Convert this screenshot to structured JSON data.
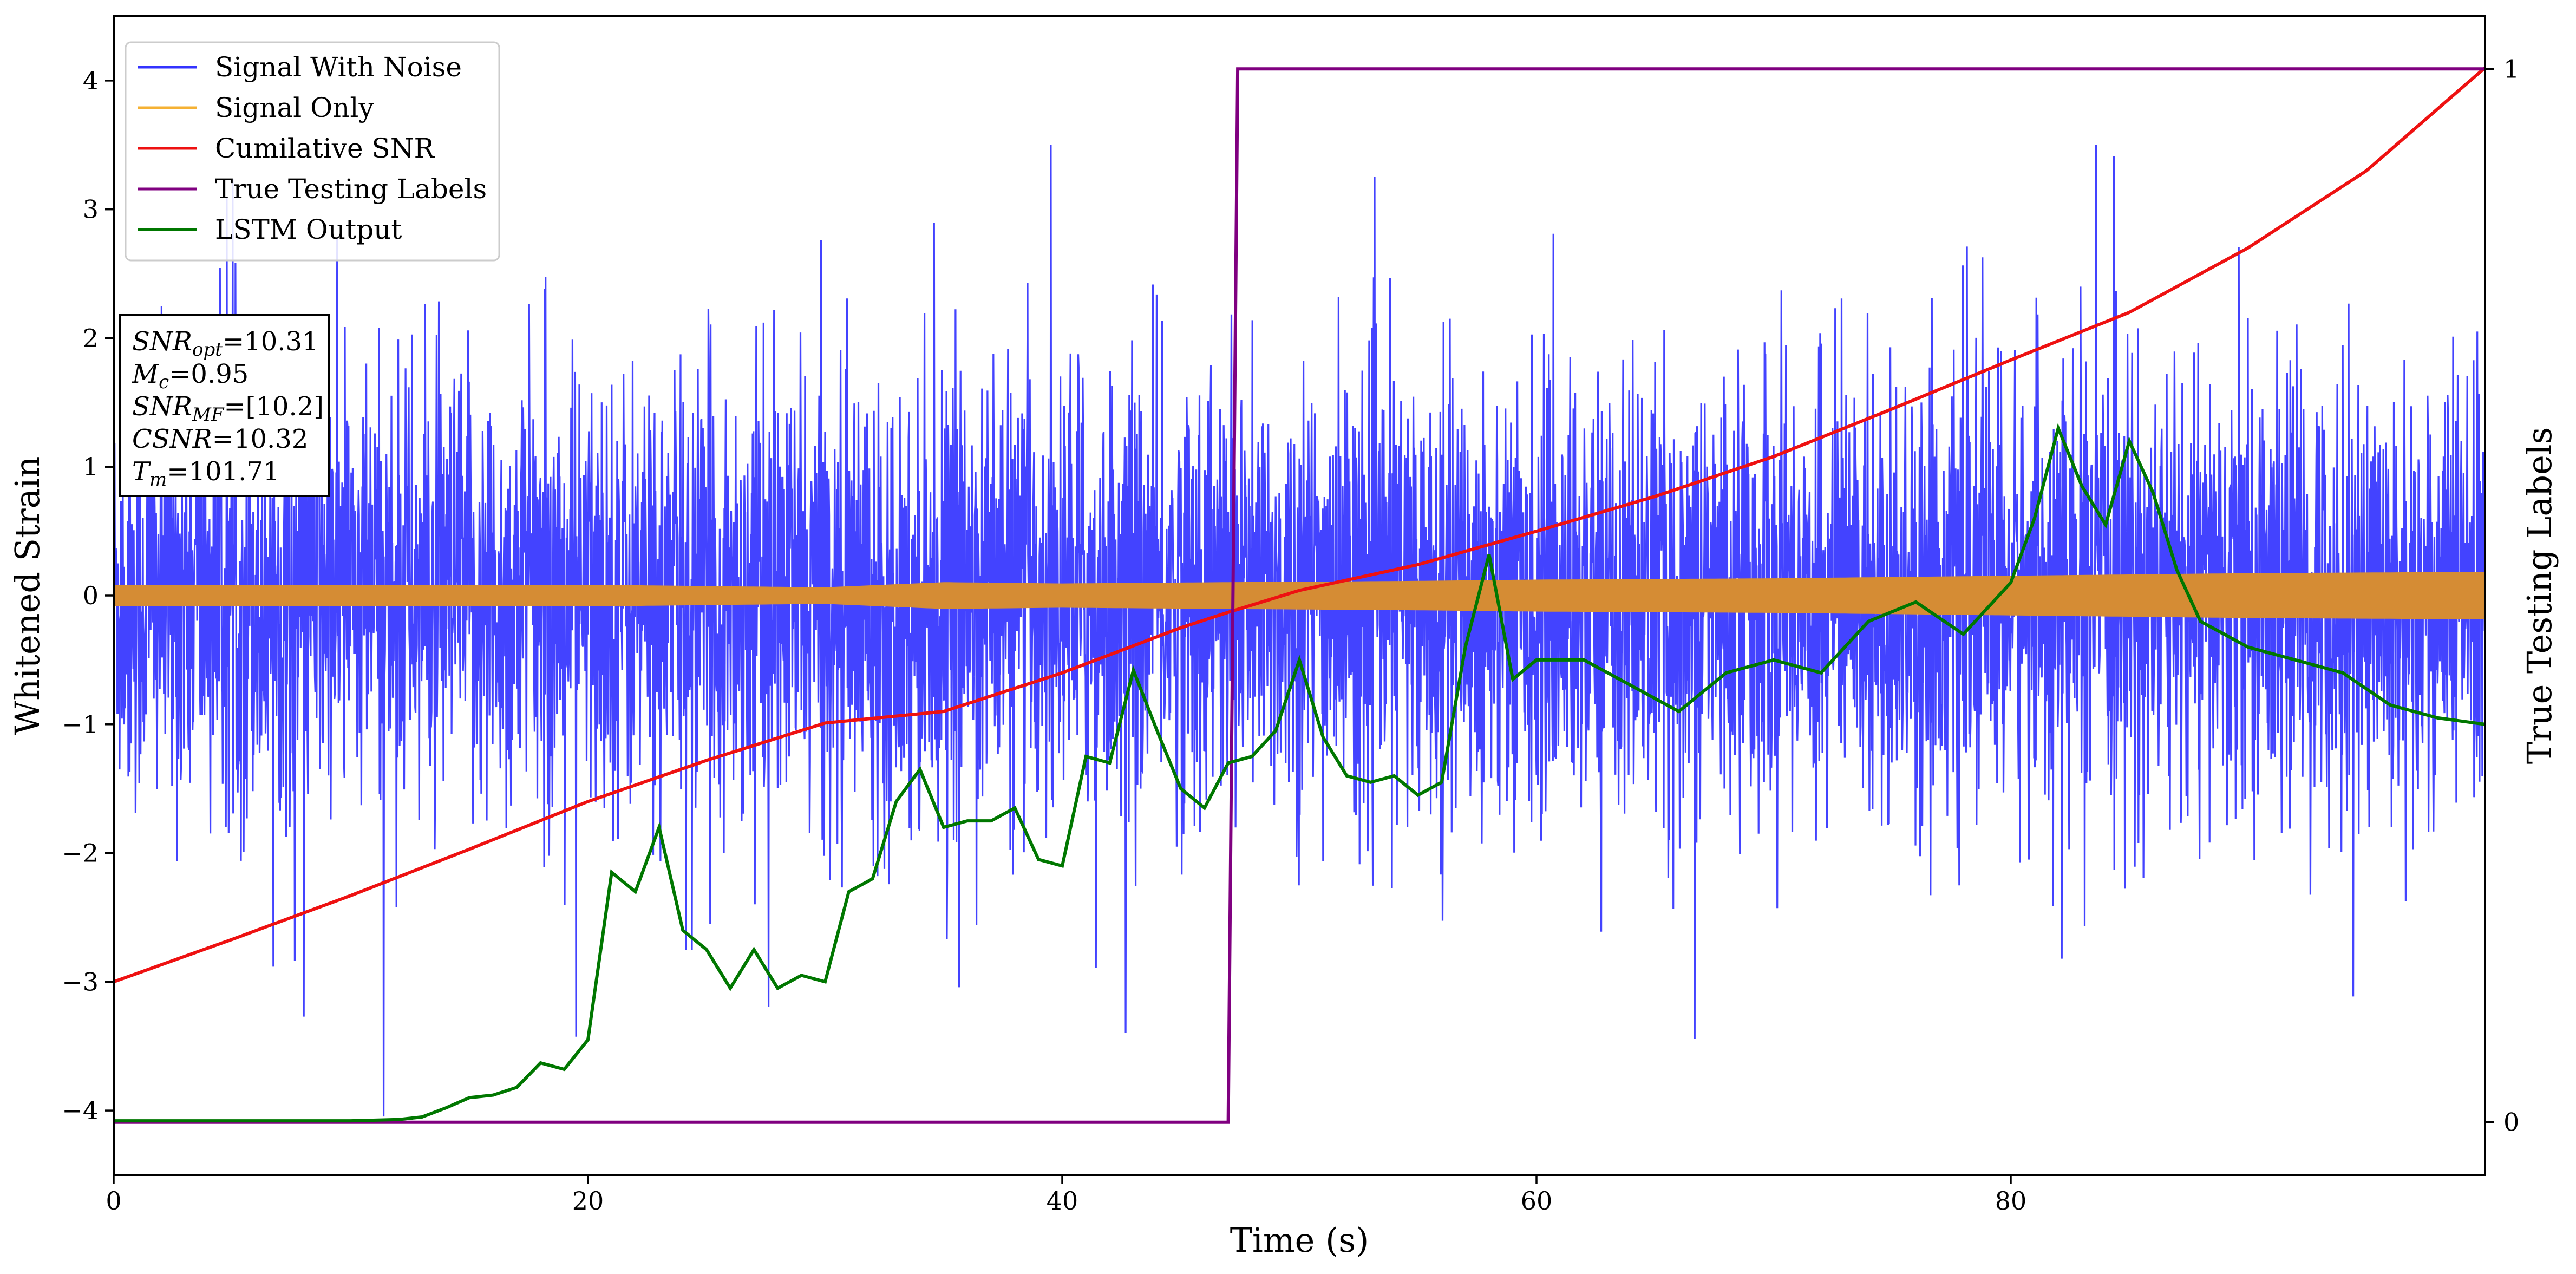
{
  "chart_data": {
    "type": "line",
    "xlabel": "Time (s)",
    "ylabel": "Whitened Strain",
    "ylabel_right": "True Testing Labels",
    "xlim": [
      0,
      100
    ],
    "ylim": [
      -4.5,
      4.5
    ],
    "ylim_right": [
      -0.05,
      1.05
    ],
    "x_ticks": [
      0,
      20,
      40,
      60,
      80
    ],
    "y_ticks": [
      -4,
      -3,
      -2,
      -1,
      0,
      1,
      2,
      3,
      4
    ],
    "y_ticks_right": [
      0,
      1
    ],
    "grid": false,
    "legend_position": "top-left",
    "legend": [
      {
        "label": "Signal With Noise",
        "color": "#3333ff"
      },
      {
        "label": "Signal Only",
        "color": "#f5b133"
      },
      {
        "label": "Cumilative SNR",
        "color": "#ee1111"
      },
      {
        "label": "True Testing Labels",
        "color": "#800080"
      },
      {
        "label": "LSTM Output",
        "color": "#007700"
      }
    ],
    "annotation": [
      {
        "label": "SNR",
        "sub": "opt",
        "value": "=10.31"
      },
      {
        "label": "M",
        "sub": "c",
        "value": "=0.95"
      },
      {
        "label": "SNR",
        "sub": "MF",
        "value": "=[10.2]"
      },
      {
        "label": "CSNR",
        "sub": "",
        "value": "=10.32"
      },
      {
        "label": "T",
        "sub": "m",
        "value": "=101.71"
      }
    ],
    "series": [
      {
        "name": "Signal With Noise",
        "color": "#3333ff",
        "kind": "noise",
        "noise_sigma": 0.85,
        "envelope_max": 3.5,
        "envelope_min": -4.1
      },
      {
        "name": "Signal Only",
        "color": "#d58c34",
        "kind": "band",
        "x": [
          0,
          10,
          20,
          30,
          35,
          40,
          47,
          55,
          60,
          70,
          80,
          90,
          100
        ],
        "amplitude": [
          0.08,
          0.08,
          0.08,
          0.06,
          0.1,
          0.09,
          0.1,
          0.11,
          0.12,
          0.13,
          0.15,
          0.17,
          0.18
        ]
      },
      {
        "name": "Cumilative SNR",
        "color": "#ee1111",
        "x": [
          0,
          5,
          10,
          15,
          20,
          25,
          30,
          35,
          40,
          45,
          47,
          50,
          55,
          60,
          65,
          70,
          75,
          80,
          85,
          90,
          95,
          100
        ],
        "y": [
          -3.0,
          -2.67,
          -2.33,
          -1.97,
          -1.6,
          -1.28,
          -0.99,
          -0.9,
          -0.6,
          -0.25,
          -0.13,
          0.04,
          0.24,
          0.5,
          0.77,
          1.08,
          1.45,
          1.83,
          2.2,
          2.7,
          3.3,
          4.1
        ]
      },
      {
        "name": "True Testing Labels",
        "color": "#800080",
        "axis": "right",
        "x": [
          0,
          47,
          47.4,
          100
        ],
        "y": [
          0,
          0,
          1,
          1
        ]
      },
      {
        "name": "LSTM Output",
        "color": "#007700",
        "x": [
          0,
          10,
          12,
          13,
          14,
          15,
          16,
          17,
          18,
          19,
          20,
          21,
          22,
          23,
          24,
          25,
          26,
          27,
          28,
          29,
          30,
          31,
          32,
          33,
          34,
          35,
          36,
          37,
          38,
          39,
          40,
          41,
          42,
          43,
          44,
          45,
          46,
          47,
          48,
          49,
          50,
          51,
          52,
          53,
          54,
          55,
          56,
          57,
          58,
          59,
          60,
          62,
          64,
          66,
          68,
          70,
          72,
          74,
          76,
          78,
          80,
          81,
          82,
          83,
          84,
          85,
          86,
          87,
          88,
          89,
          90,
          92,
          94,
          96,
          98,
          100
        ],
        "y": [
          -4.08,
          -4.08,
          -4.07,
          -4.05,
          -3.98,
          -3.9,
          -3.88,
          -3.82,
          -3.63,
          -3.68,
          -3.45,
          -2.15,
          -2.3,
          -1.8,
          -2.6,
          -2.75,
          -3.05,
          -2.75,
          -3.05,
          -2.95,
          -3.0,
          -2.3,
          -2.2,
          -1.6,
          -1.35,
          -1.8,
          -1.75,
          -1.75,
          -1.65,
          -2.05,
          -2.1,
          -1.25,
          -1.3,
          -0.58,
          -1.05,
          -1.5,
          -1.65,
          -1.3,
          -1.25,
          -1.05,
          -0.5,
          -1.1,
          -1.4,
          -1.45,
          -1.4,
          -1.55,
          -1.45,
          -0.4,
          0.32,
          -0.65,
          -0.5,
          -0.5,
          -0.7,
          -0.9,
          -0.6,
          -0.5,
          -0.6,
          -0.2,
          -0.05,
          -0.3,
          0.1,
          0.6,
          1.3,
          0.85,
          0.55,
          1.2,
          0.8,
          0.2,
          -0.2,
          -0.3,
          -0.4,
          -0.5,
          -0.6,
          -0.85,
          -0.95,
          -1.0
        ]
      }
    ]
  }
}
